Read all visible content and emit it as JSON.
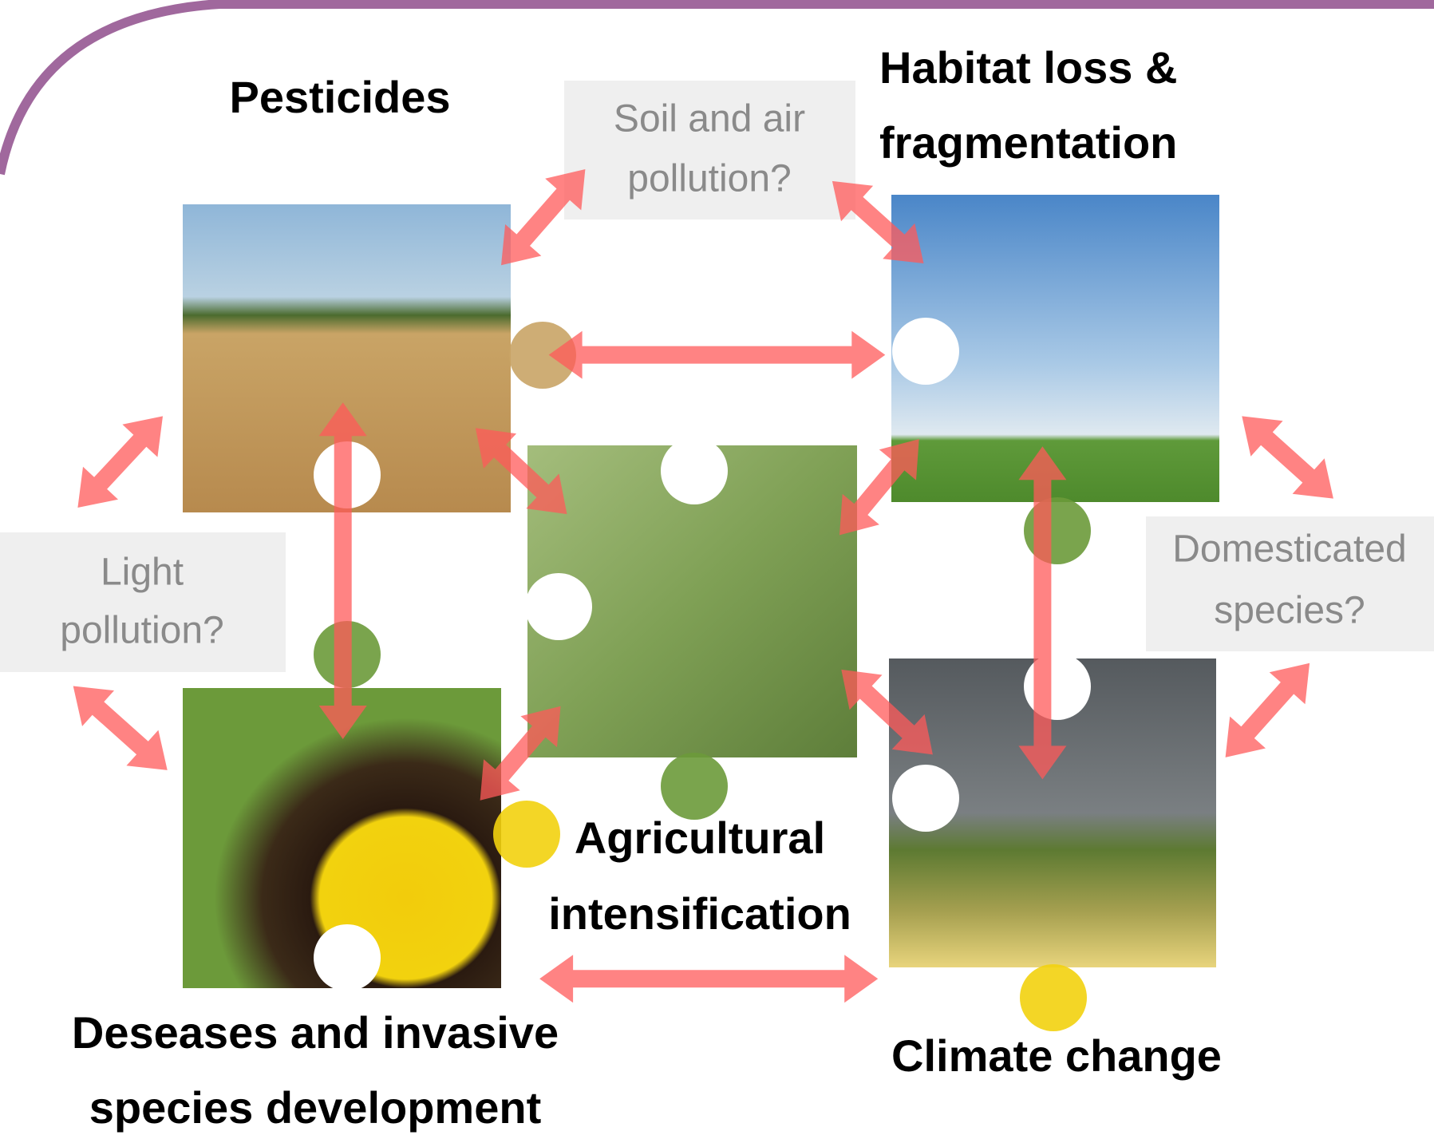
{
  "nodes": [
    {
      "label": [
        "Pesticides"
      ]
    },
    {
      "label": [
        "Habitat loss &",
        "fragmentation"
      ]
    },
    {
      "label": [
        "Agricultural",
        "intensification"
      ]
    },
    {
      "label": [
        "Deseases and invasive",
        "species development"
      ]
    },
    {
      "label": [
        "Climate change"
      ]
    }
  ],
  "questions": [
    {
      "label": [
        "Soil and air",
        "pollution?"
      ]
    },
    {
      "label": [
        "Light",
        "pollution?"
      ]
    },
    {
      "label": [
        "Domesticated",
        "species?"
      ]
    }
  ]
}
